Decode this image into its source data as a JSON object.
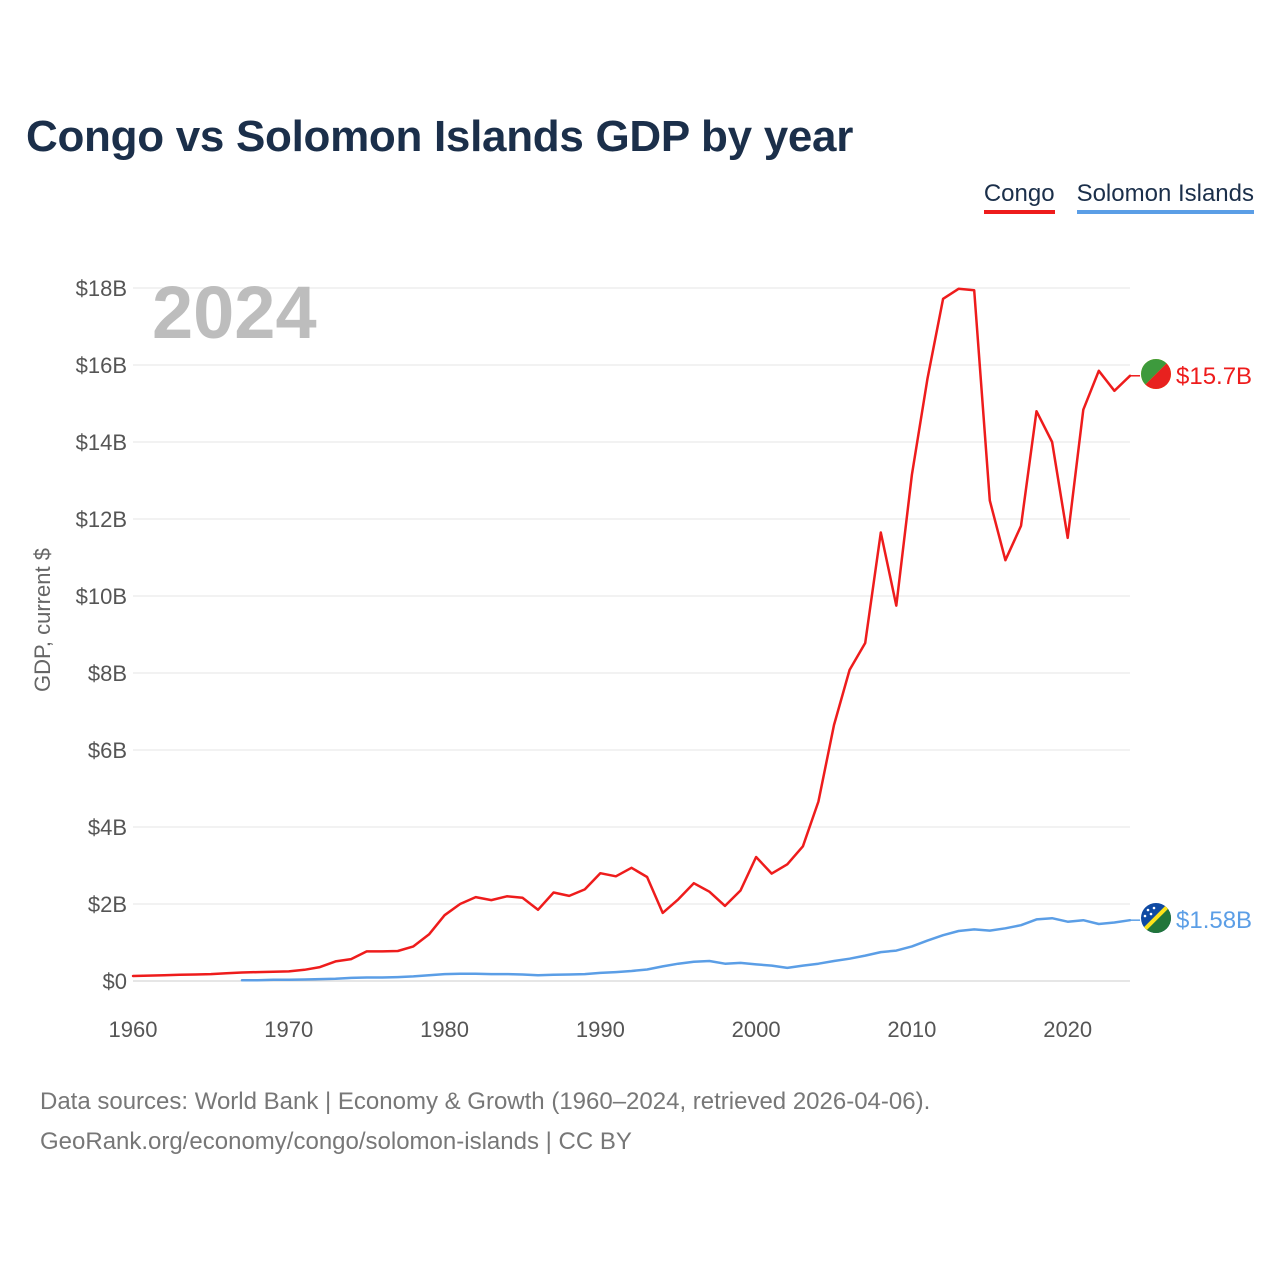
{
  "chart_data": {
    "type": "line",
    "title": "Congo vs Solomon Islands GDP by year",
    "ylabel": "GDP, current $",
    "xlabel": "",
    "ylim": [
      0,
      18
    ],
    "xlim": [
      1960,
      2024
    ],
    "year_label": "2024",
    "x_ticks": [
      "1960",
      "1970",
      "1980",
      "1990",
      "2000",
      "2010",
      "2020"
    ],
    "y_ticks": [
      "$0",
      "$2B",
      "$4B",
      "$6B",
      "$8B",
      "$10B",
      "$12B",
      "$14B",
      "$16B",
      "$18B"
    ],
    "legend_position": "top-right",
    "series": [
      {
        "name": "Congo",
        "color": "#ee1c1c",
        "end_label": "$15.7B",
        "x": [
          1960,
          1961,
          1962,
          1963,
          1964,
          1965,
          1966,
          1967,
          1968,
          1969,
          1970,
          1971,
          1972,
          1973,
          1974,
          1975,
          1976,
          1977,
          1978,
          1979,
          1980,
          1981,
          1982,
          1983,
          1984,
          1985,
          1986,
          1987,
          1988,
          1989,
          1990,
          1991,
          1992,
          1993,
          1994,
          1995,
          1996,
          1997,
          1998,
          1999,
          2000,
          2001,
          2002,
          2003,
          2004,
          2005,
          2006,
          2007,
          2008,
          2009,
          2010,
          2011,
          2012,
          2013,
          2014,
          2015,
          2016,
          2017,
          2018,
          2019,
          2020,
          2021,
          2022,
          2023,
          2024
        ],
        "values": [
          0.13,
          0.14,
          0.15,
          0.16,
          0.17,
          0.18,
          0.2,
          0.22,
          0.23,
          0.24,
          0.25,
          0.29,
          0.36,
          0.51,
          0.57,
          0.77,
          0.77,
          0.78,
          0.9,
          1.21,
          1.71,
          2.0,
          2.18,
          2.1,
          2.2,
          2.16,
          1.85,
          2.3,
          2.21,
          2.38,
          2.8,
          2.72,
          2.94,
          2.7,
          1.77,
          2.12,
          2.54,
          2.32,
          1.95,
          2.35,
          3.22,
          2.79,
          3.03,
          3.5,
          4.66,
          6.65,
          8.08,
          8.78,
          11.65,
          9.75,
          13.15,
          15.65,
          17.72,
          17.98,
          17.94,
          12.48,
          10.93,
          11.82,
          14.8,
          14.0,
          11.51,
          14.84,
          15.85,
          15.33,
          15.72
        ]
      },
      {
        "name": "Solomon Islands",
        "color": "#5b9ee6",
        "end_label": "$1.58B",
        "x": [
          1967,
          1968,
          1969,
          1970,
          1971,
          1972,
          1973,
          1974,
          1975,
          1976,
          1977,
          1978,
          1979,
          1980,
          1981,
          1982,
          1983,
          1984,
          1985,
          1986,
          1987,
          1988,
          1989,
          1990,
          1991,
          1992,
          1993,
          1994,
          1995,
          1996,
          1997,
          1998,
          1999,
          2000,
          2001,
          2002,
          2003,
          2004,
          2005,
          2006,
          2007,
          2008,
          2009,
          2010,
          2011,
          2012,
          2013,
          2014,
          2015,
          2016,
          2017,
          2018,
          2019,
          2020,
          2021,
          2022,
          2023,
          2024
        ],
        "values": [
          0.02,
          0.02,
          0.03,
          0.03,
          0.04,
          0.05,
          0.06,
          0.08,
          0.09,
          0.09,
          0.1,
          0.12,
          0.15,
          0.18,
          0.19,
          0.19,
          0.18,
          0.18,
          0.17,
          0.15,
          0.16,
          0.17,
          0.18,
          0.21,
          0.23,
          0.26,
          0.3,
          0.38,
          0.45,
          0.5,
          0.52,
          0.45,
          0.47,
          0.43,
          0.4,
          0.34,
          0.4,
          0.45,
          0.52,
          0.58,
          0.66,
          0.75,
          0.79,
          0.9,
          1.05,
          1.19,
          1.3,
          1.34,
          1.31,
          1.37,
          1.45,
          1.6,
          1.63,
          1.54,
          1.58,
          1.48,
          1.52,
          1.58
        ]
      }
    ]
  },
  "legend": {
    "items": [
      "Congo",
      "Solomon Islands"
    ]
  },
  "footer": {
    "line1": "Data sources: World Bank | Economy & Growth (1960–2024, retrieved 2026-04-06).",
    "line2": "GeoRank.org/economy/congo/solomon-islands | CC BY"
  }
}
